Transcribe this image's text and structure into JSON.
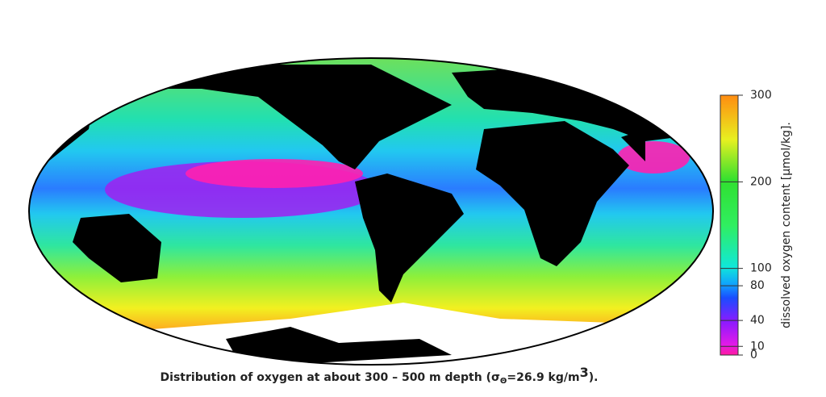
{
  "map": {
    "caption": {
      "text": "Distribution of oxygen at about 300 – 500 m depth (σ",
      "subscript": "Θ",
      "text2": "=26.9 kg/m",
      "superscript": "3",
      "tail": ")."
    }
  },
  "colorbar": {
    "label": "dissolved oxygen content [µmol/kg].",
    "lim": [
      0,
      300
    ],
    "ticks": [
      0,
      10,
      40,
      80,
      100,
      200,
      300
    ]
  }
}
